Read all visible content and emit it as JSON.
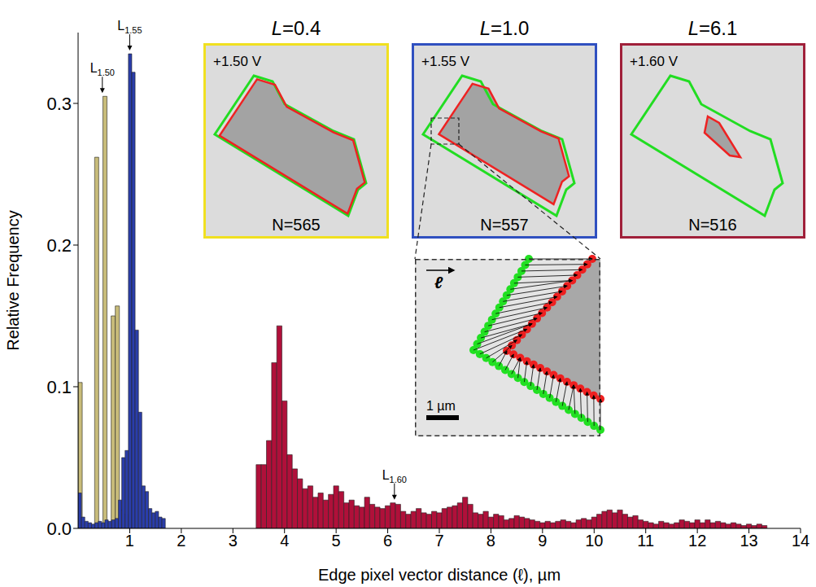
{
  "chart_data": {
    "type": "histogram",
    "xlabel": "Edge pixel vector distance (ℓ), µm",
    "ylabel": "Relative Frequency",
    "xlim": [
      0,
      14
    ],
    "xticks": [
      1,
      2,
      3,
      4,
      5,
      6,
      7,
      8,
      9,
      10,
      11,
      12,
      13,
      14
    ],
    "ylim": [
      0,
      0.35
    ],
    "yticks": [
      {
        "value": 0,
        "label": "0.0"
      },
      0.1,
      0.2,
      0.3
    ],
    "grid": false,
    "series": [
      {
        "color": "#c8bc7a",
        "bins": [
          0,
          0.08,
          0.16,
          0.24,
          0.32,
          0.4,
          0.48,
          0.56,
          0.64,
          0.72,
          0.8,
          0.88,
          0.96
        ],
        "counts": [
          0.103,
          0,
          0,
          0,
          0.262,
          0,
          0.305,
          0,
          0.15,
          0.157,
          0.013,
          0.01
        ]
      },
      {
        "color": "#2a3daa",
        "bins": [
          0,
          0.065,
          0.13,
          0.195,
          0.26,
          0.325,
          0.39,
          0.455,
          0.52,
          0.585,
          0.65,
          0.715,
          0.78,
          0.845,
          0.91,
          0.975,
          1.04,
          1.105,
          1.17,
          1.235,
          1.3,
          1.365,
          1.43,
          1.495,
          1.56,
          1.625,
          1.69
        ],
        "counts": [
          0.025,
          0.008,
          0.005,
          0.004,
          0.003,
          0.004,
          0.005,
          0.004,
          0.006,
          0.005,
          0.006,
          0.007,
          0.02,
          0.05,
          0.055,
          0.335,
          0.322,
          0.14,
          0.082,
          0.03,
          0.026,
          0.014,
          0.011,
          0.012,
          0.008,
          0.007
        ]
      },
      {
        "color": "#b0103a",
        "bins": [
          3.45,
          3.55,
          3.65,
          3.75,
          3.85,
          3.95,
          4.05,
          4.15,
          4.25,
          4.35,
          4.45,
          4.55,
          4.65,
          4.75,
          4.85,
          4.95,
          5.05,
          5.15,
          5.25,
          5.35,
          5.45,
          5.55,
          5.65,
          5.75,
          5.85,
          5.95,
          6.05,
          6.15,
          6.25,
          6.35,
          6.45,
          6.55,
          6.65,
          6.75,
          6.85,
          6.95,
          7.05,
          7.15,
          7.25,
          7.35,
          7.45,
          7.55,
          7.65,
          7.75,
          7.85,
          7.95,
          8.05,
          8.15,
          8.25,
          8.35,
          8.45,
          8.55,
          8.65,
          8.75,
          8.85,
          8.95,
          9.05,
          9.15,
          9.25,
          9.35,
          9.45,
          9.55,
          9.65,
          9.75,
          9.85,
          9.95,
          10.05,
          10.15,
          10.25,
          10.35,
          10.45,
          10.55,
          10.65,
          10.75,
          10.85,
          10.95,
          11.05,
          11.15,
          11.25,
          11.35,
          11.45,
          11.55,
          11.65,
          11.75,
          11.85,
          11.95,
          12.05,
          12.15,
          12.25,
          12.35,
          12.45,
          12.55,
          12.65,
          12.75,
          12.85,
          12.95,
          13.05,
          13.15,
          13.25,
          13.35
        ],
        "counts": [
          0.045,
          0.045,
          0.062,
          0.117,
          0.143,
          0.09,
          0.052,
          0.042,
          0.035,
          0.028,
          0.03,
          0.022,
          0.025,
          0.02,
          0.024,
          0.03,
          0.026,
          0.018,
          0.02,
          0.016,
          0.015,
          0.022,
          0.017,
          0.015,
          0.014,
          0.016,
          0.018,
          0.017,
          0.012,
          0.01,
          0.012,
          0.014,
          0.011,
          0.01,
          0.012,
          0.011,
          0.014,
          0.015,
          0.016,
          0.018,
          0.022,
          0.017,
          0.011,
          0.01,
          0.012,
          0.008,
          0.01,
          0.009,
          0.006,
          0.007,
          0.009,
          0.008,
          0.007,
          0.006,
          0.005,
          0.004,
          0.005,
          0.004,
          0.005,
          0.006,
          0.005,
          0.004,
          0.006,
          0.007,
          0.006,
          0.008,
          0.01,
          0.012,
          0.013,
          0.011,
          0.013,
          0.01,
          0.008,
          0.009,
          0.006,
          0.005,
          0.004,
          0.003,
          0.005,
          0.004,
          0.003,
          0.004,
          0.006,
          0.005,
          0.004,
          0.006,
          0.004,
          0.006,
          0.004,
          0.005,
          0.004,
          0.003,
          0.004,
          0.003,
          0.002,
          0.003,
          0.002,
          0.003,
          0.002
        ]
      }
    ],
    "annotations": [
      {
        "text": "L",
        "subscript": "1.50",
        "x": 0.47,
        "y": 0.305
      },
      {
        "text": "L",
        "subscript": "1.55",
        "x": 1.0,
        "y": 0.335
      },
      {
        "text": "L",
        "subscript": "1.60",
        "x": 6.13,
        "y": 0.018
      }
    ],
    "insets": [
      {
        "title": "L=0.4",
        "voltage": "+1.50 V",
        "label": "N=565",
        "color": "#f0e020"
      },
      {
        "title": "L=1.0",
        "voltage": "+1.55 V",
        "label": "N=557",
        "color": "#3050c0"
      },
      {
        "title": "L=6.1",
        "voltage": "+1.60 V",
        "label": "N=516",
        "color": "#a0203a"
      }
    ],
    "zoom": {
      "vector_label": "ℓ",
      "scale_bar": "1 µm"
    }
  }
}
